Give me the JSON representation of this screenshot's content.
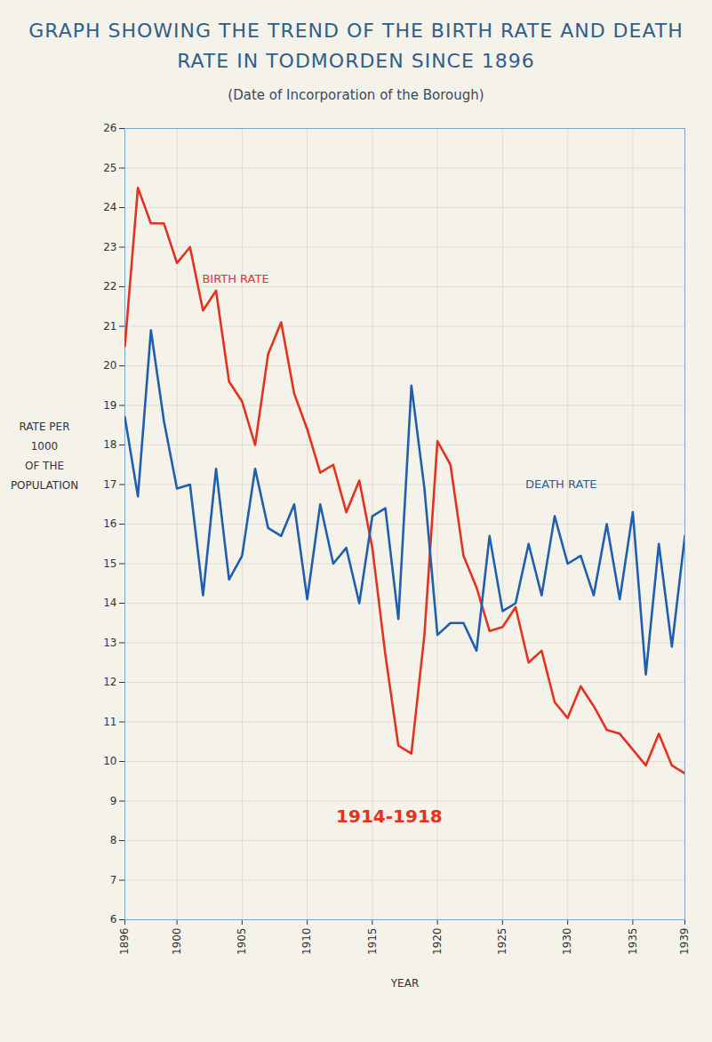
{
  "chart_data": {
    "type": "line",
    "title": "GRAPH SHOWING THE TREND OF THE BIRTH RATE AND DEATH RATE IN TODMORDEN SINCE 1896",
    "subtitle": "(Date of Incorporation of the Borough)",
    "x_label": "YEAR",
    "y_label": "RATE PER\n1000\nOF THE\nPOPULATION",
    "x": [
      1896,
      1897,
      1898,
      1899,
      1900,
      1901,
      1902,
      1903,
      1904,
      1905,
      1906,
      1907,
      1908,
      1909,
      1910,
      1911,
      1912,
      1913,
      1914,
      1915,
      1916,
      1917,
      1918,
      1919,
      1920,
      1921,
      1922,
      1923,
      1924,
      1925,
      1926,
      1927,
      1928,
      1929,
      1930,
      1931,
      1932,
      1933,
      1934,
      1935,
      1936,
      1937,
      1938,
      1939
    ],
    "series": [
      {
        "name": "BIRTH RATE",
        "color": "#e5321e",
        "values": [
          20.5,
          24.5,
          23.6,
          23.6,
          22.6,
          23.0,
          21.4,
          21.9,
          19.6,
          19.1,
          18.0,
          20.3,
          21.1,
          19.3,
          18.4,
          17.3,
          17.5,
          16.3,
          17.1,
          15.4,
          12.7,
          10.4,
          10.2,
          13.2,
          18.1,
          17.5,
          15.2,
          14.4,
          13.3,
          13.4,
          13.9,
          12.5,
          12.8,
          11.5,
          11.1,
          11.9,
          11.4,
          10.8,
          10.7,
          10.3,
          9.9,
          10.7,
          9.9,
          9.7
        ]
      },
      {
        "name": "DEATH RATE",
        "color": "#1f5fae",
        "values": [
          18.7,
          16.7,
          20.9,
          18.6,
          16.9,
          17.0,
          14.2,
          17.4,
          14.6,
          15.2,
          17.4,
          15.9,
          15.7,
          16.5,
          14.1,
          16.5,
          15.0,
          15.4,
          14.0,
          16.2,
          16.4,
          13.6,
          19.5,
          16.9,
          13.2,
          13.5,
          13.5,
          12.8,
          15.7,
          13.8,
          14.0,
          15.5,
          14.2,
          16.2,
          15.0,
          15.2,
          14.2,
          16.0,
          14.1,
          16.3,
          12.2,
          15.5,
          12.9,
          15.7
        ]
      }
    ],
    "annotations": [
      {
        "text": "BIRTH RATE",
        "x": 1904.5,
        "y": 22.2,
        "color": "#e5321e"
      },
      {
        "text": "DEATH RATE",
        "x": 1929.5,
        "y": 17.0,
        "color": "#2f5f8a"
      },
      {
        "text": "1914-1918",
        "x": 1916.3,
        "y": 8.6,
        "color": "#e5321e"
      }
    ],
    "xlim": [
      1896,
      1939
    ],
    "xticks": [
      1896,
      1900,
      1905,
      1910,
      1915,
      1920,
      1925,
      1930,
      1935,
      1939
    ],
    "ylim": [
      6,
      26
    ],
    "yticks": [
      6,
      7,
      8,
      9,
      10,
      11,
      12,
      13,
      14,
      15,
      16,
      17,
      18,
      19,
      20,
      21,
      22,
      23,
      24,
      25,
      26
    ],
    "grid": true
  }
}
